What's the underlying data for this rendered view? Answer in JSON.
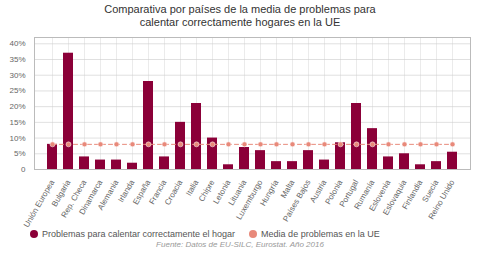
{
  "chart_data": {
    "type": "bar",
    "title": "Comparativa por países de la media de problemas para\ncalentar correctamente hogares en la UE",
    "source": "Fuente: Datos de EU-SILC, Eurostat. Año 2016",
    "categories": [
      "Unión Europea",
      "Bulgaria",
      "Rep. Checa",
      "Dinamarca",
      "Alemania",
      "Irlanda",
      "España",
      "Francia",
      "Croacia",
      "Italia",
      "Chipre",
      "Letonia",
      "Lituania",
      "Luxemburgo",
      "Hungría",
      "Malta",
      "Países Bajos",
      "Austria",
      "Polonia",
      "Portugal",
      "Rumanía",
      "Eslovenia",
      "Eslovaquia",
      "Finlandia",
      "Suecia",
      "Reino Unido"
    ],
    "series": [
      {
        "name": "Problemas para calentar correctamente el hogar",
        "type": "bar",
        "color": "#8B0038",
        "values": [
          8.0,
          37.0,
          4.0,
          3.0,
          3.0,
          2.0,
          28.0,
          4.0,
          15.0,
          21.0,
          10.0,
          1.5,
          7.0,
          6.0,
          2.5,
          2.5,
          6.0,
          3.0,
          8.5,
          21.0,
          13.0,
          4.0,
          5.0,
          1.5,
          2.5,
          5.5
        ]
      },
      {
        "name": "Media de problemas en la UE",
        "type": "line",
        "color": "#E8897A",
        "line_style": "dashed",
        "marker": "circle",
        "values": [
          8.0,
          8.0,
          8.0,
          8.0,
          8.0,
          8.0,
          8.0,
          8.0,
          8.0,
          8.0,
          8.0,
          8.0,
          8.0,
          8.0,
          8.0,
          8.0,
          8.0,
          8.0,
          8.0,
          8.0,
          8.0,
          8.0,
          8.0,
          8.0,
          8.0,
          8.0
        ]
      }
    ],
    "ylim": [
      0,
      42
    ],
    "yticks": [
      0,
      {
        "value": 5,
        "label": "5%"
      },
      {
        "value": 10,
        "label": "10%"
      },
      {
        "value": 15,
        "label": "15%"
      },
      {
        "value": 20,
        "label": "20%"
      },
      {
        "value": 25,
        "label": "25%"
      },
      {
        "value": 30,
        "label": "30%"
      },
      {
        "value": 35,
        "label": "35%"
      },
      {
        "value": 40,
        "label": "40%"
      }
    ],
    "grid": true,
    "legend": "lower left"
  }
}
